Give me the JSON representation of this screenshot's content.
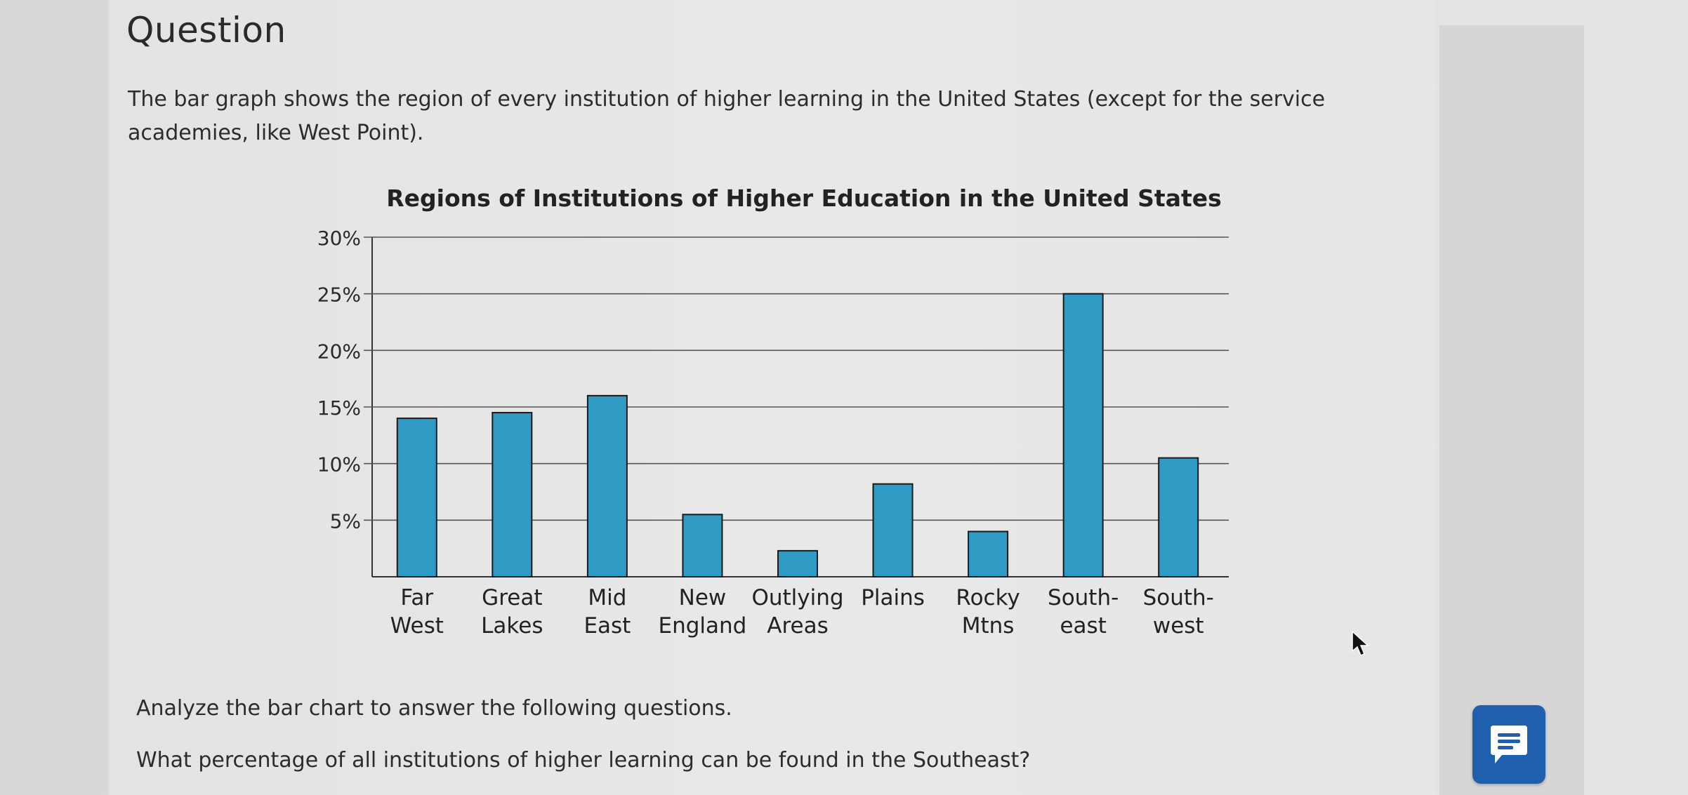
{
  "question_heading": "Question",
  "intro_text": "The bar graph shows the region of every institution of higher learning in the United States (except for the service academies, like West Point).",
  "chart_data": {
    "type": "bar",
    "title": "Regions of Institutions of Higher Education in the United States",
    "categories": [
      [
        "Far",
        "West"
      ],
      [
        "Great",
        "Lakes"
      ],
      [
        "Mid",
        "East"
      ],
      [
        "New",
        "England"
      ],
      [
        "Outlying",
        "Areas"
      ],
      [
        "Plains"
      ],
      [
        "Rocky",
        "Mtns"
      ],
      [
        "South-",
        "east"
      ],
      [
        "South-",
        "west"
      ]
    ],
    "values": [
      14,
      14.5,
      16,
      5.5,
      2.3,
      8.2,
      4,
      25,
      10.5
    ],
    "ylim": [
      0,
      30
    ],
    "yticks": [
      5,
      10,
      15,
      20,
      25,
      30
    ],
    "ytick_labels": [
      "5%",
      "10%",
      "15%",
      "20%",
      "25%",
      "30%"
    ],
    "grid": true,
    "bar_color": "#2f9ac4",
    "bar_edge_color": "#1a1a1a"
  },
  "instructions_text": "Analyze the bar chart to answer the following questions.",
  "question_text": "What percentage of all institutions of higher learning can be found in the Southeast?",
  "feedback_icon": "chat-bubble-icon",
  "accent_color": "#1f5fae"
}
